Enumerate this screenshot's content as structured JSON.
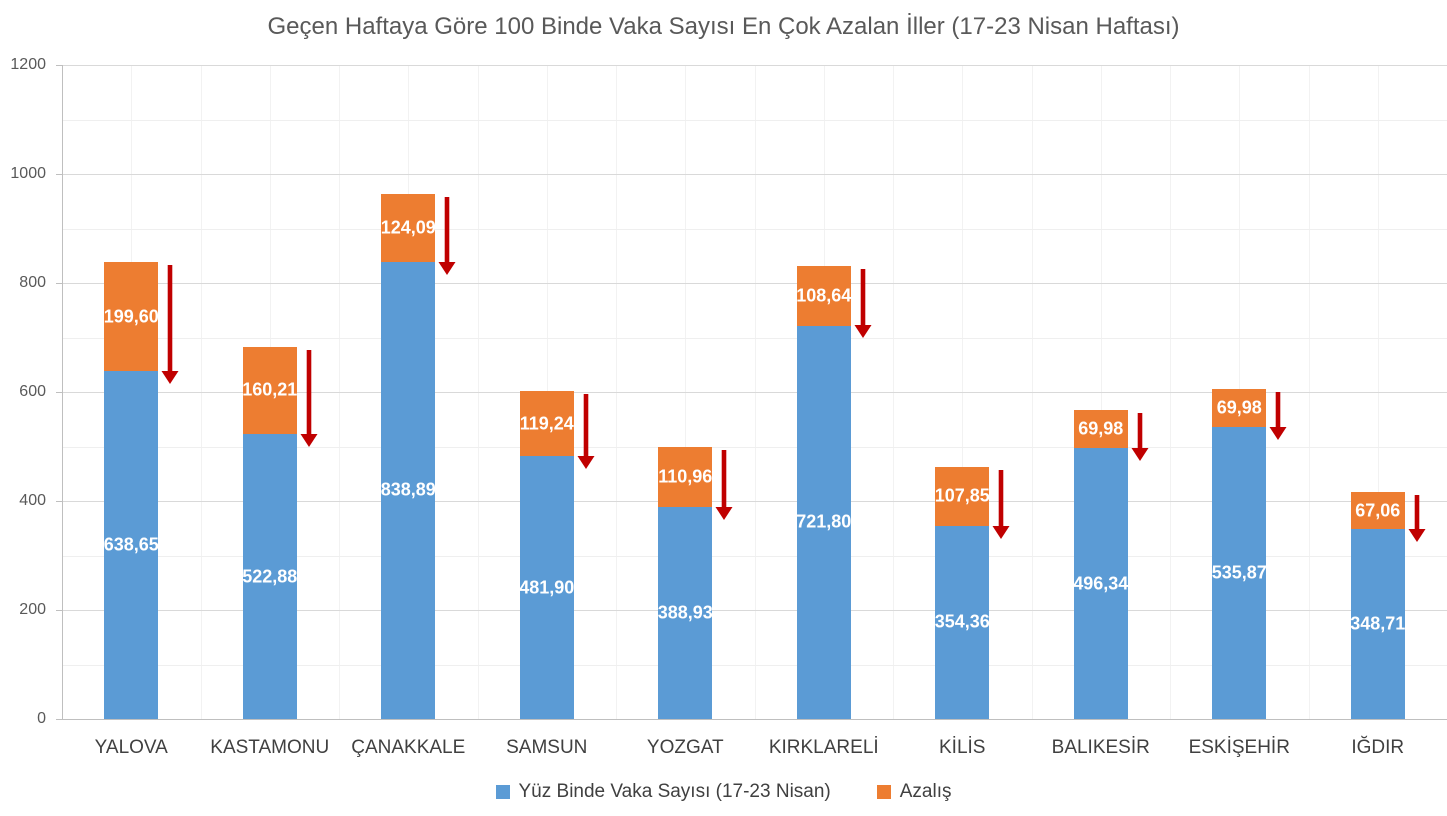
{
  "title": "Geçen Haftaya Göre 100 Binde Vaka Sayısı En Çok Azalan İller (17-23 Nisan Haftası)",
  "chart_data": {
    "type": "bar",
    "stacked": true,
    "orientation": "vertical",
    "title": "Geçen Haftaya Göre 100 Binde Vaka Sayısı En Çok Azalan İller (17-23 Nisan Haftası)",
    "categories": [
      "YALOVA",
      "KASTAMONU",
      "ÇANAKKALE",
      "SAMSUN",
      "YOZGAT",
      "KIRKLARELİ",
      "KİLİS",
      "BALIKESİR",
      "ESKİŞEHİR",
      "IĞDIR"
    ],
    "series": [
      {
        "name": "Yüz Binde Vaka Sayısı (17-23 Nisan)",
        "color": "#5B9BD5",
        "values": [
          638.65,
          522.88,
          838.89,
          481.9,
          388.93,
          721.8,
          354.36,
          496.34,
          535.87,
          348.71
        ],
        "labels": [
          "638,65",
          "522,88",
          "838,89",
          "481,90",
          "388,93",
          "721,80",
          "354,36",
          "496,34",
          "535,87",
          "348,71"
        ]
      },
      {
        "name": "Azalış",
        "color": "#ED7D31",
        "values": [
          199.6,
          160.21,
          124.09,
          119.24,
          110.96,
          108.64,
          107.85,
          69.98,
          69.98,
          67.06
        ],
        "labels": [
          "199,60",
          "160,21",
          "124,09",
          "119,24",
          "110,96",
          "108,64",
          "107,85",
          "69,98",
          "69,98",
          "67,06"
        ]
      }
    ],
    "xlabel": "",
    "ylabel": "",
    "ylim": [
      0,
      1200
    ],
    "y_major_ticks": [
      0,
      200,
      400,
      600,
      800,
      1000,
      1200
    ],
    "y_minor_step": 100,
    "grid": true,
    "legend_position": "bottom",
    "annotation": {
      "type": "down-arrow",
      "per_category": true,
      "meaning": "decrease vs previous week"
    }
  },
  "colors": {
    "series_blue": "#5B9BD5",
    "series_orange": "#ED7D31",
    "arrow_red": "#C00000",
    "grid_major": "#D9D9D9",
    "grid_minor": "#EFEFEF",
    "grid_vertical": "#F2F2F2",
    "axis_line": "#BFBFBF",
    "title_text": "#595959",
    "axis_text": "#595959",
    "category_text": "#404040",
    "value_label_text": "#FFFFFF"
  }
}
